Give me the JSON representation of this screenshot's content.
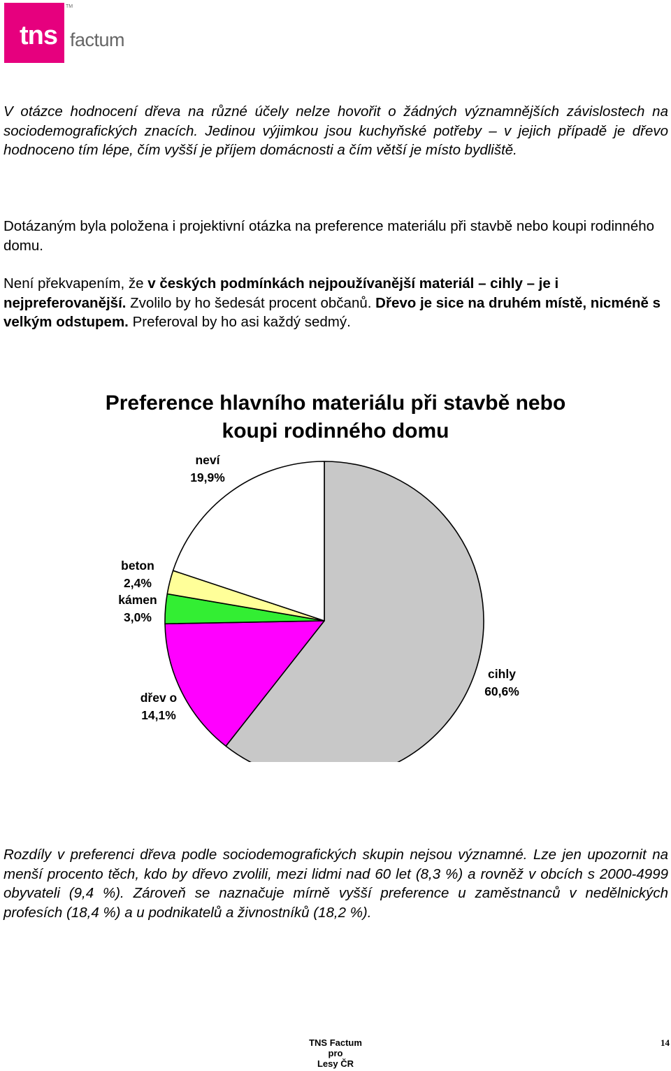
{
  "logo": {
    "brand_short": "tns",
    "brand_name": "factum",
    "trademark": "TM",
    "colors": {
      "magenta": "#e6007e",
      "grey_text": "#666666"
    }
  },
  "paragraphs": {
    "p1": "V otázce hodnocení dřeva na různé účely nelze hovořit o žádných významnějších závislostech na sociodemografických znacích. Jedinou výjimkou jsou kuchyňské potřeby – v jejich případě je dřevo hodnoceno tím lépe, čím vyšší je příjem domácnosti a čím větší je místo bydliště.",
    "p2": "Dotázaným byla položena i projektivní otázka na preference materiálu při stavbě nebo koupi rodinného domu.",
    "p3": {
      "s1": "Není překvapením, že ",
      "b1": "v českých podmínkách nejpoužívanější materiál – cihly – je i nejpreferovanější.",
      "s2": " Zvolilo by ho šedesát procent občanů. ",
      "b2": "Dřevo je sice na druhém místě, nicméně s velkým odstupem.",
      "s3": " Preferoval by ho asi každý sedmý."
    },
    "p4": "Rozdíly v preferenci dřeva podle sociodemografických skupin nejsou významné. Lze jen upozornit na menší procento těch, kdo by dřevo zvolili, mezi lidmi nad 60 let (8,3 %) a rovněž v obcích s 2000-4999 obyvateli (9,4 %). Zároveň se naznačuje mírně vyšší preference u zaměstnanců v nedělnických profesích (18,4 %) a u podnikatelů a živnostníků (18,2 %)."
  },
  "chart_data": {
    "type": "pie",
    "title_line1": "Preference hlavního materiálu při stavbě nebo",
    "title_line2": "koupi rodinného domu",
    "start": "12 o'clock",
    "direction": "clockwise",
    "slices": [
      {
        "name": "cihly",
        "value": 60.6,
        "label": "60,6%",
        "color": "#c8c8c8"
      },
      {
        "name": "dřev o",
        "value": 14.1,
        "label": "14,1%",
        "color": "#ff00ff"
      },
      {
        "name": "kámen",
        "value": 3.0,
        "label": "3,0%",
        "color": "#33ee33"
      },
      {
        "name": "beton",
        "value": 2.4,
        "label": "2,4%",
        "color": "#ffff99"
      },
      {
        "name": "neví",
        "value": 19.9,
        "label": "19,9%",
        "color": "#ffffff"
      }
    ]
  },
  "footer": {
    "line1": "TNS Factum",
    "line2": "pro",
    "line3": "Lesy ČR",
    "page_number": "14"
  }
}
